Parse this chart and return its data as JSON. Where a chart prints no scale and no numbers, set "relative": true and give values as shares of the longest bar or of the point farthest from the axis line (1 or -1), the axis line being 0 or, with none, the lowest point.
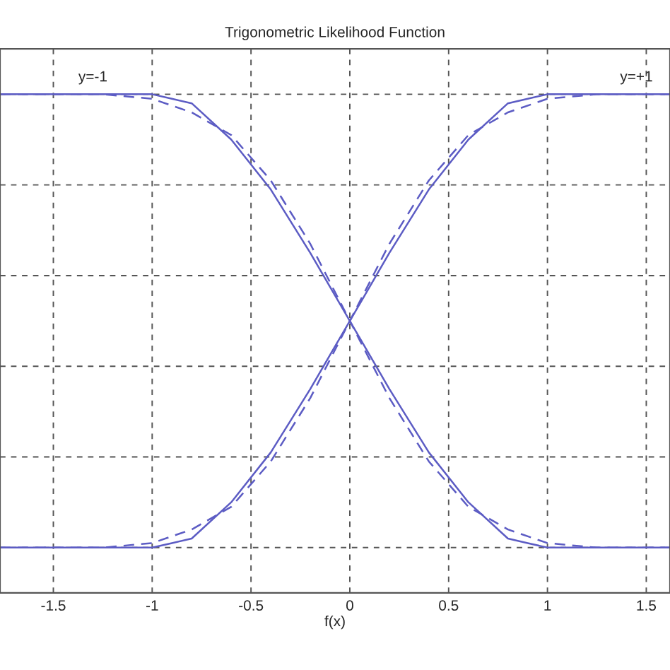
{
  "chart_data": {
    "type": "line",
    "title": "Trigonometric Likelihood Function",
    "xlabel": "f(x)",
    "relative": true,
    "xlim": [
      -1.77,
      1.62
    ],
    "xticks": [
      -1.5,
      -1,
      -0.5,
      0,
      0.5,
      1,
      1.5
    ],
    "grid": true,
    "tick_labels": "x",
    "marker": "none",
    "series": [
      {
        "color": "#5c5cc4",
        "line_style": "solid",
        "x": [
          -1.77,
          -1,
          -0.9,
          -0.8,
          -0.6,
          -0.4,
          -0.2,
          0,
          0.2,
          0.4,
          0.6,
          0.8,
          0.9,
          1,
          1.62
        ],
        "values": [
          0,
          0,
          0.01,
          0.02,
          0.1,
          0.21,
          0.35,
          0.5,
          0.65,
          0.79,
          0.9,
          0.98,
          0.99,
          1,
          1
        ]
      },
      {
        "color": "#5c5cc4",
        "line_style": "solid",
        "x": [
          -1.77,
          -1,
          -0.9,
          -0.8,
          -0.6,
          -0.4,
          -0.2,
          0,
          0.2,
          0.4,
          0.6,
          0.8,
          0.9,
          1,
          1.62
        ],
        "values": [
          1,
          1,
          0.99,
          0.98,
          0.9,
          0.79,
          0.65,
          0.5,
          0.35,
          0.21,
          0.1,
          0.02,
          0.01,
          0,
          0
        ]
      },
      {
        "color": "#5c5cc4",
        "line_style": "dashed",
        "x": [
          -1.77,
          -1.5,
          -1.25,
          -1,
          -0.8,
          -0.6,
          -0.4,
          -0.2,
          0,
          0.2,
          0.4,
          0.6,
          0.8,
          1,
          1.25,
          1.5,
          1.62
        ],
        "values": [
          0,
          0,
          0,
          0.01,
          0.04,
          0.09,
          0.19,
          0.33,
          0.5,
          0.67,
          0.81,
          0.91,
          0.96,
          0.99,
          1,
          1,
          1
        ]
      },
      {
        "color": "#5c5cc4",
        "line_style": "dashed",
        "x": [
          -1.77,
          -1.5,
          -1.25,
          -1,
          -0.8,
          -0.6,
          -0.4,
          -0.2,
          0,
          0.2,
          0.4,
          0.6,
          0.8,
          1,
          1.25,
          1.5,
          1.62
        ],
        "values": [
          1,
          1,
          1,
          0.99,
          0.96,
          0.91,
          0.81,
          0.67,
          0.5,
          0.33,
          0.19,
          0.09,
          0.04,
          0.01,
          0,
          0,
          0
        ]
      }
    ],
    "annotations": [
      {
        "text": "y=-1",
        "x": -1.3,
        "y": 1
      },
      {
        "text": "y=+1",
        "x": 1.45,
        "y": 1
      }
    ]
  }
}
